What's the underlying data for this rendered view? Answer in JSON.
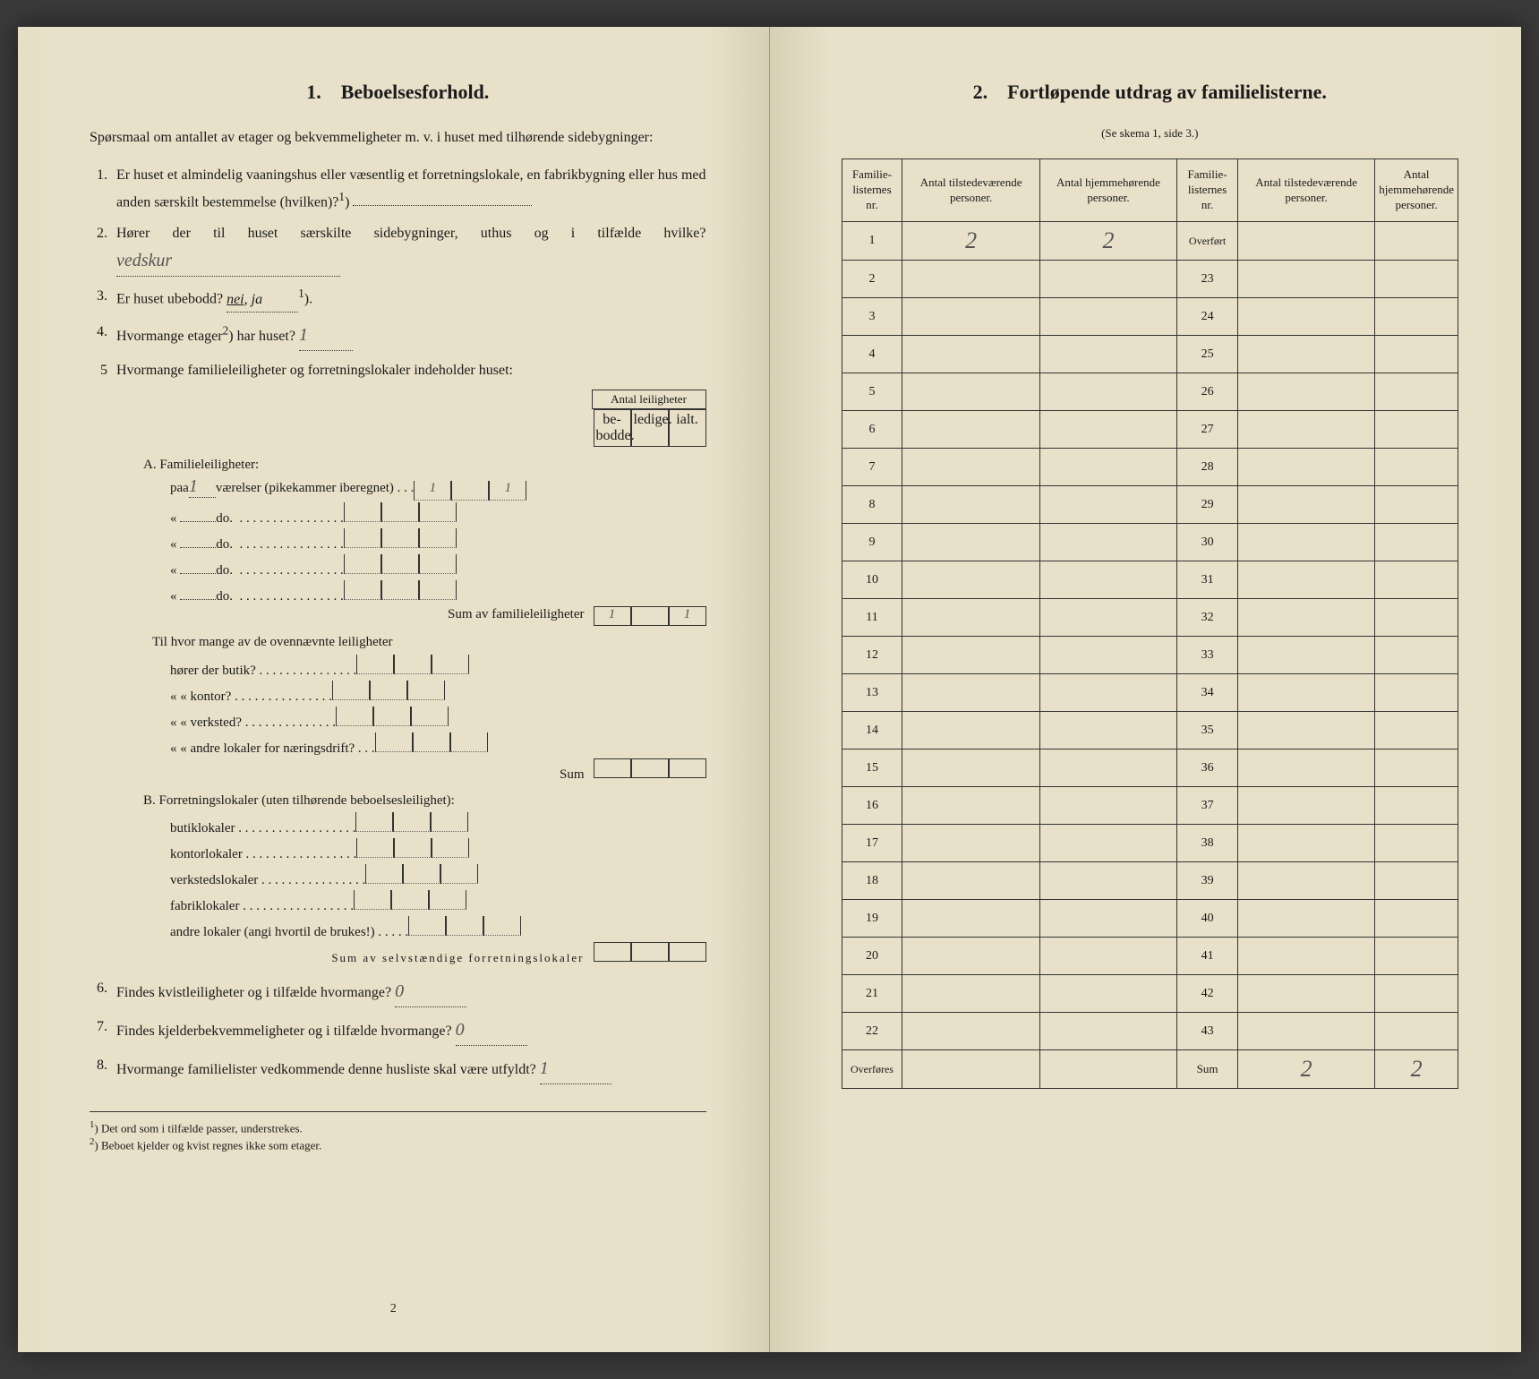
{
  "left": {
    "section_num": "1.",
    "section_title": "Beboelsesforhold.",
    "intro": "Spørsmaal om antallet av etager og bekvemmeligheter m. v. i huset med tilhørende sidebygninger:",
    "q1": "Er huset et almindelig vaaningshus eller væsentlig et forretningslokale, en fabrikbygning eller hus med anden særskilt bestemmelse (hvilken)?",
    "q1_sup": "1",
    "q1_answer": "",
    "q2": "Hører der til huset særskilte sidebygninger, uthus og i tilfælde hvilke?",
    "q2_answer": "vedskur",
    "q3_a": "Er huset ubebodd?",
    "q3_b": "nei, ja",
    "q3_sup": "1",
    "q3_c": ").",
    "q4_a": "Hvormange etager",
    "q4_sup": "2",
    "q4_b": ") har huset?",
    "q4_answer": "1",
    "q5": "Hvormange familieleiligheter og forretningslokaler indeholder huset:",
    "small_table_title": "Antal leiligheter",
    "small_th1": "be-bodde.",
    "small_th2": "ledige.",
    "small_th3": "ialt.",
    "sectA": "A. Familieleiligheter:",
    "rowA1_a": "paa",
    "rowA1_val": "1",
    "rowA1_b": "værelser (pikekammer iberegnet) . . .",
    "rowA1_c1": "1",
    "rowA1_c3": "1",
    "rowA_do": "do.",
    "sumA": "Sum av familieleiligheter",
    "sumA_c1": "1",
    "sumA_c3": "1",
    "til_intro": "Til hvor mange av de ovennævnte leiligheter",
    "til1": "hører der butik? . . . . . . . . . . . . . . .",
    "til2": "«     «  kontor? . . . . . . . . . . . . . . .",
    "til3": "«     «  verksted? . . . . . . . . . . . . . .",
    "til4": "«     «  andre lokaler for næringsdrift? . . .",
    "til_sum": "Sum",
    "sectB": "B. Forretningslokaler (uten tilhørende beboelsesleilighet):",
    "rowB1": "butiklokaler . . . . . . . . . . . . . . . . . .",
    "rowB2": "kontorlokaler . . . . . . . . . . . . . . . . .",
    "rowB3": "verkstedslokaler . . . . . . . . . . . . . . . .",
    "rowB4": "fabriklokaler . . . . . . . . . . . . . . . . .",
    "rowB5": "andre lokaler (angi hvortil de brukes!) . . . . .",
    "sumB": "Sum av selvstændige forretningslokaler",
    "q6": "Findes kvistleiligheter og i tilfælde hvormange?",
    "q6_answer": "0",
    "q7": "Findes kjelderbekvemmeligheter og i tilfælde hvormange?",
    "q7_answer": "0",
    "q8": "Hvormange familielister vedkommende denne husliste skal være utfyldt?",
    "q8_answer": "1",
    "fn1": "Det ord som i tilfælde passer, understrekes.",
    "fn2": "Beboet kjelder og kvist regnes ikke som etager.",
    "page_num": "2"
  },
  "right": {
    "section_num": "2.",
    "section_title": "Fortløpende utdrag av familielisterne.",
    "subtitle": "(Se skema 1, side 3.)",
    "th1": "Familie-listernes nr.",
    "th2": "Antal tilstedeværende personer.",
    "th3": "Antal hjemmehørende personer.",
    "th4": "Familie-listernes nr.",
    "th5": "Antal tilstedeværende personer.",
    "th6": "Antal hjemmehørende personer.",
    "overfort": "Overført",
    "overfores": "Overføres",
    "sum": "Sum",
    "left_rows": [
      "1",
      "2",
      "3",
      "4",
      "5",
      "6",
      "7",
      "8",
      "9",
      "10",
      "11",
      "12",
      "13",
      "14",
      "15",
      "16",
      "17",
      "18",
      "19",
      "20",
      "21",
      "22"
    ],
    "right_rows": [
      "23",
      "24",
      "25",
      "26",
      "27",
      "28",
      "29",
      "30",
      "31",
      "32",
      "33",
      "34",
      "35",
      "36",
      "37",
      "38",
      "39",
      "40",
      "41",
      "42",
      "43"
    ],
    "row1_v1": "2",
    "row1_v2": "2",
    "sum_v1": "2",
    "sum_v2": "2"
  }
}
